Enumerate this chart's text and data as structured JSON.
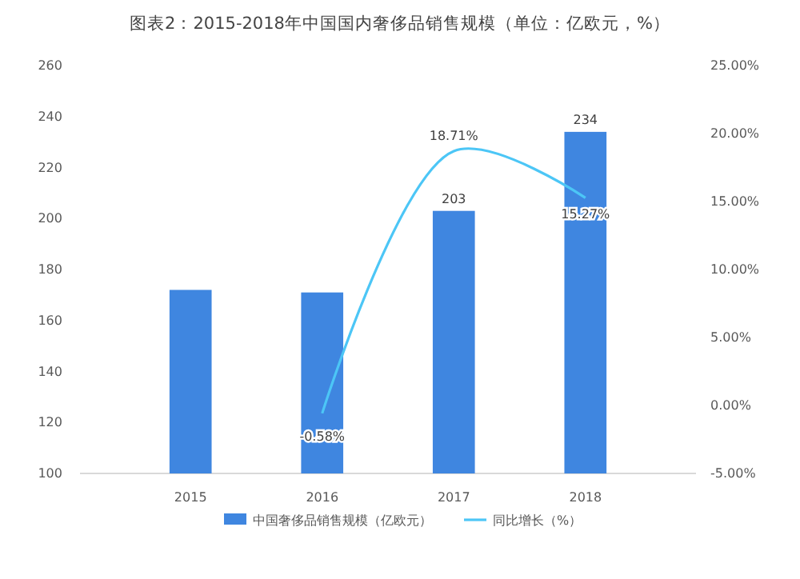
{
  "chart_data": {
    "type": "bar",
    "title": "图表2：2015-2018年中国国内奢侈品销售规模（单位：亿欧元，%）",
    "categories": [
      "2015",
      "2016",
      "2017",
      "2018"
    ],
    "series": [
      {
        "name": "中国奢侈品销售规模（亿欧元）",
        "color": "#3f86e0",
        "values": [
          172,
          171,
          203,
          234
        ],
        "value_labels": [
          null,
          null,
          "203",
          "234"
        ]
      },
      {
        "name": "同比增长（%）",
        "type": "line",
        "axis": "y2",
        "color": "#4cc6f6",
        "values": [
          null,
          -0.58,
          18.71,
          15.27
        ],
        "value_labels": [
          null,
          "-0.58%",
          "18.71%",
          "15.27%"
        ]
      }
    ],
    "ylim": [
      100,
      260
    ],
    "yticks": [
      100,
      120,
      140,
      160,
      180,
      200,
      220,
      240,
      260
    ],
    "y2lim": [
      -5,
      25
    ],
    "y2ticks": [
      {
        "value": -5,
        "label": "-5.00%"
      },
      {
        "value": 0,
        "label": "0.00%"
      },
      {
        "value": 5,
        "label": "5.00%"
      },
      {
        "value": 10,
        "label": "10.00%"
      },
      {
        "value": 15,
        "label": "15.00%"
      },
      {
        "value": 20,
        "label": "20.00%"
      },
      {
        "value": 25,
        "label": "25.00%"
      }
    ],
    "legend": "bottom",
    "marker": "none"
  }
}
